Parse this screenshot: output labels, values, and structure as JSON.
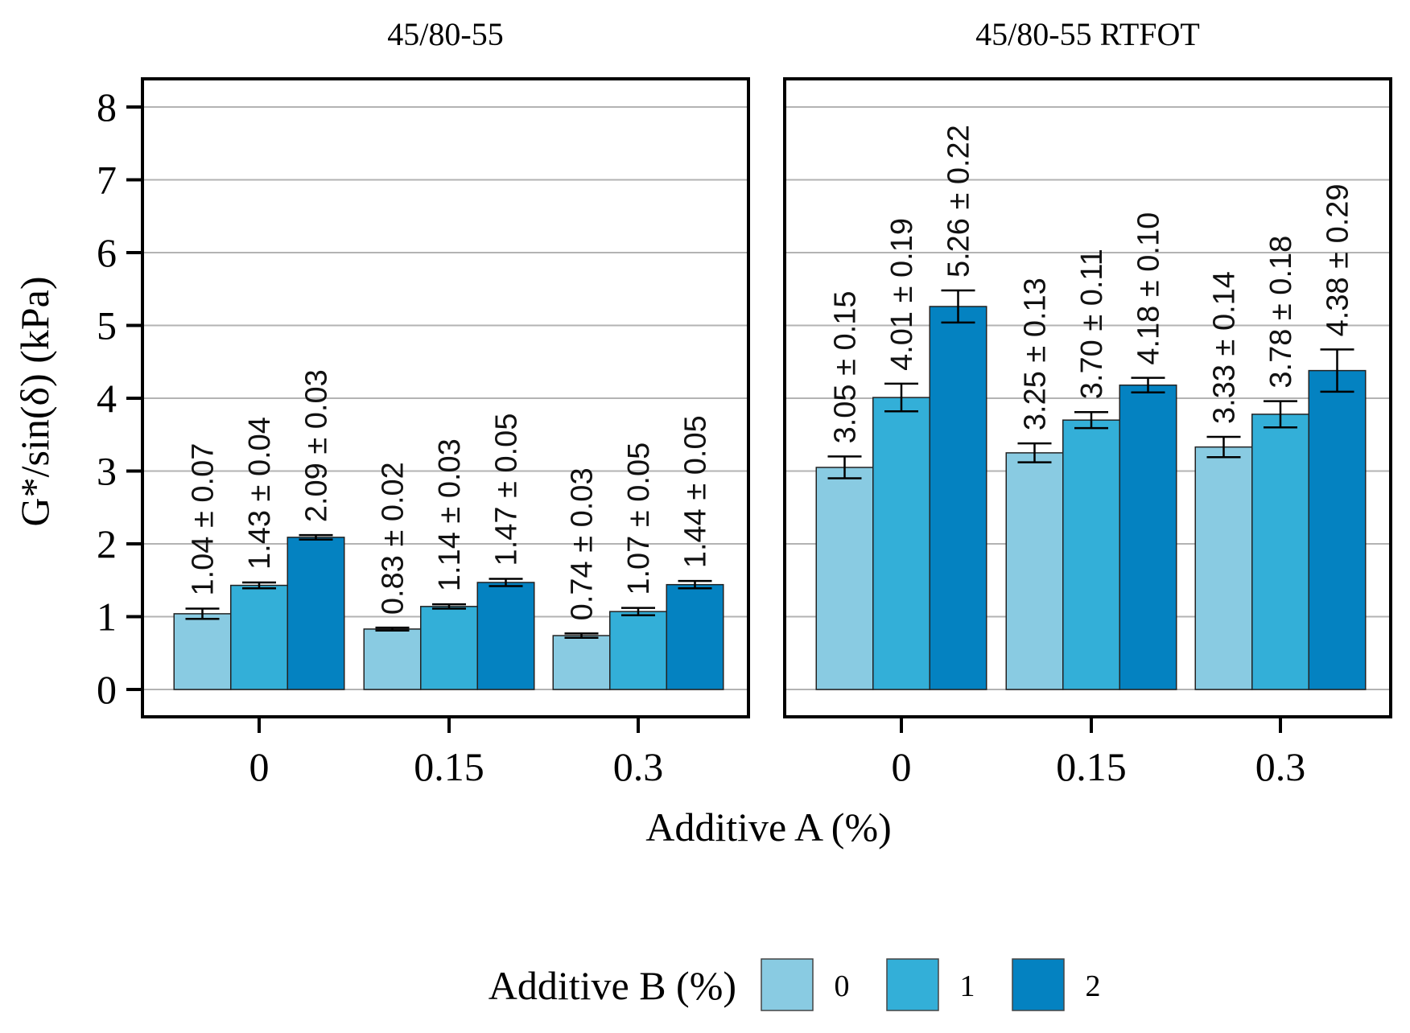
{
  "chart_data": {
    "type": "bar",
    "ylabel": "G*/sin(δ) (kPa)",
    "xlabel": "Additive A (%)",
    "ylim": [
      0,
      8
    ],
    "yticks": [
      "0",
      "1",
      "2",
      "3",
      "4",
      "5",
      "6",
      "7",
      "8"
    ],
    "categories": [
      "0",
      "0.15",
      "0.3"
    ],
    "legend": {
      "title": "Additive B (%)",
      "position": "bottom",
      "entries": [
        "0",
        "1",
        "2"
      ]
    },
    "series_colors": [
      "#89cbe2",
      "#33afd8",
      "#0482c1"
    ],
    "panels": [
      {
        "title": "45/80-55",
        "groups": [
          {
            "category": "0",
            "bars": [
              {
                "series": "0",
                "value": 1.04,
                "error": 0.07,
                "label": "1.04 ± 0.07"
              },
              {
                "series": "1",
                "value": 1.43,
                "error": 0.04,
                "label": "1.43 ± 0.04"
              },
              {
                "series": "2",
                "value": 2.09,
                "error": 0.03,
                "label": "2.09 ± 0.03"
              }
            ]
          },
          {
            "category": "0.15",
            "bars": [
              {
                "series": "0",
                "value": 0.83,
                "error": 0.02,
                "label": "0.83 ± 0.02"
              },
              {
                "series": "1",
                "value": 1.14,
                "error": 0.03,
                "label": "1.14 ± 0.03"
              },
              {
                "series": "2",
                "value": 1.47,
                "error": 0.05,
                "label": "1.47 ± 0.05"
              }
            ]
          },
          {
            "category": "0.3",
            "bars": [
              {
                "series": "0",
                "value": 0.74,
                "error": 0.03,
                "label": "0.74 ± 0.03"
              },
              {
                "series": "1",
                "value": 1.07,
                "error": 0.05,
                "label": "1.07 ± 0.05"
              },
              {
                "series": "2",
                "value": 1.44,
                "error": 0.05,
                "label": "1.44 ± 0.05"
              }
            ]
          }
        ]
      },
      {
        "title": "45/80-55 RTFOT",
        "groups": [
          {
            "category": "0",
            "bars": [
              {
                "series": "0",
                "value": 3.05,
                "error": 0.15,
                "label": "3.05 ± 0.15"
              },
              {
                "series": "1",
                "value": 4.01,
                "error": 0.19,
                "label": "4.01 ± 0.19"
              },
              {
                "series": "2",
                "value": 5.26,
                "error": 0.22,
                "label": "5.26 ± 0.22"
              }
            ]
          },
          {
            "category": "0.15",
            "bars": [
              {
                "series": "0",
                "value": 3.25,
                "error": 0.13,
                "label": "3.25 ± 0.13"
              },
              {
                "series": "1",
                "value": 3.7,
                "error": 0.11,
                "label": "3.70 ± 0.11"
              },
              {
                "series": "2",
                "value": 4.18,
                "error": 0.1,
                "label": "4.18 ± 0.10"
              }
            ]
          },
          {
            "category": "0.3",
            "bars": [
              {
                "series": "0",
                "value": 3.33,
                "error": 0.14,
                "label": "3.33 ± 0.14"
              },
              {
                "series": "1",
                "value": 3.78,
                "error": 0.18,
                "label": "3.78 ± 0.18"
              },
              {
                "series": "2",
                "value": 4.38,
                "error": 0.29,
                "label": "4.38 ± 0.29"
              }
            ]
          }
        ]
      }
    ]
  }
}
